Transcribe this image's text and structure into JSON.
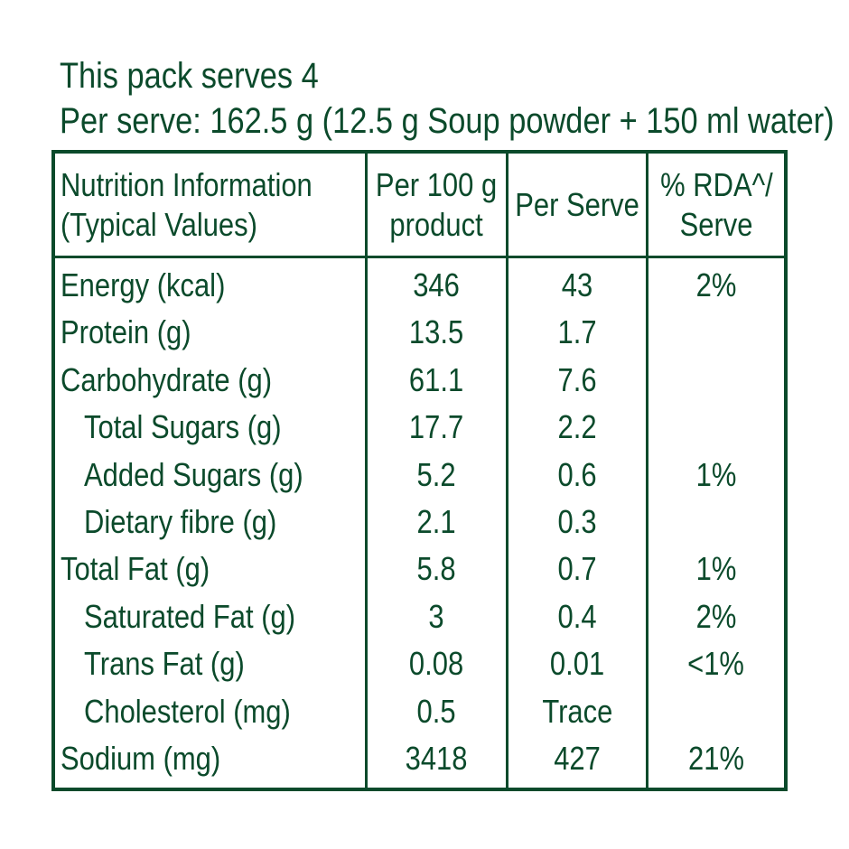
{
  "header": {
    "serves_line": "This pack serves 4",
    "per_serve_line": "Per serve: 162.5 g (12.5 g Soup powder + 150 ml water)"
  },
  "table": {
    "columns": [
      {
        "line1": "Nutrition Information",
        "line2": "(Typical Values)"
      },
      {
        "line1": "Per 100 g",
        "line2": "product"
      },
      {
        "line1": "Per Serve",
        "line2": ""
      },
      {
        "line1": "% RDA^/",
        "line2": "Serve"
      }
    ],
    "rows": [
      {
        "nutrient": "Energy (kcal)",
        "indent": false,
        "per100": "346",
        "perServe": "43",
        "rda": "2%"
      },
      {
        "nutrient": "Protein (g)",
        "indent": false,
        "per100": "13.5",
        "perServe": "1.7",
        "rda": ""
      },
      {
        "nutrient": "Carbohydrate (g)",
        "indent": false,
        "per100": "61.1",
        "perServe": "7.6",
        "rda": ""
      },
      {
        "nutrient": "Total Sugars (g)",
        "indent": true,
        "per100": "17.7",
        "perServe": "2.2",
        "rda": ""
      },
      {
        "nutrient": "Added Sugars (g)",
        "indent": true,
        "per100": "5.2",
        "perServe": "0.6",
        "rda": "1%"
      },
      {
        "nutrient": "Dietary fibre (g)",
        "indent": true,
        "per100": "2.1",
        "perServe": "0.3",
        "rda": ""
      },
      {
        "nutrient": "Total Fat (g)",
        "indent": false,
        "per100": "5.8",
        "perServe": "0.7",
        "rda": "1%"
      },
      {
        "nutrient": "Saturated Fat (g)",
        "indent": true,
        "per100": "3",
        "perServe": "0.4",
        "rda": "2%"
      },
      {
        "nutrient": "Trans Fat (g)",
        "indent": true,
        "per100": "0.08",
        "perServe": "0.01",
        "rda": "<1%"
      },
      {
        "nutrient": "Cholesterol (mg)",
        "indent": true,
        "per100": "0.5",
        "perServe": "Trace",
        "rda": ""
      },
      {
        "nutrient": "Sodium (mg)",
        "indent": false,
        "per100": "3418",
        "perServe": "427",
        "rda": "21%"
      }
    ]
  },
  "colors": {
    "text": "#0b4a2b",
    "border": "#0b4a2b",
    "background": "#ffffff"
  }
}
